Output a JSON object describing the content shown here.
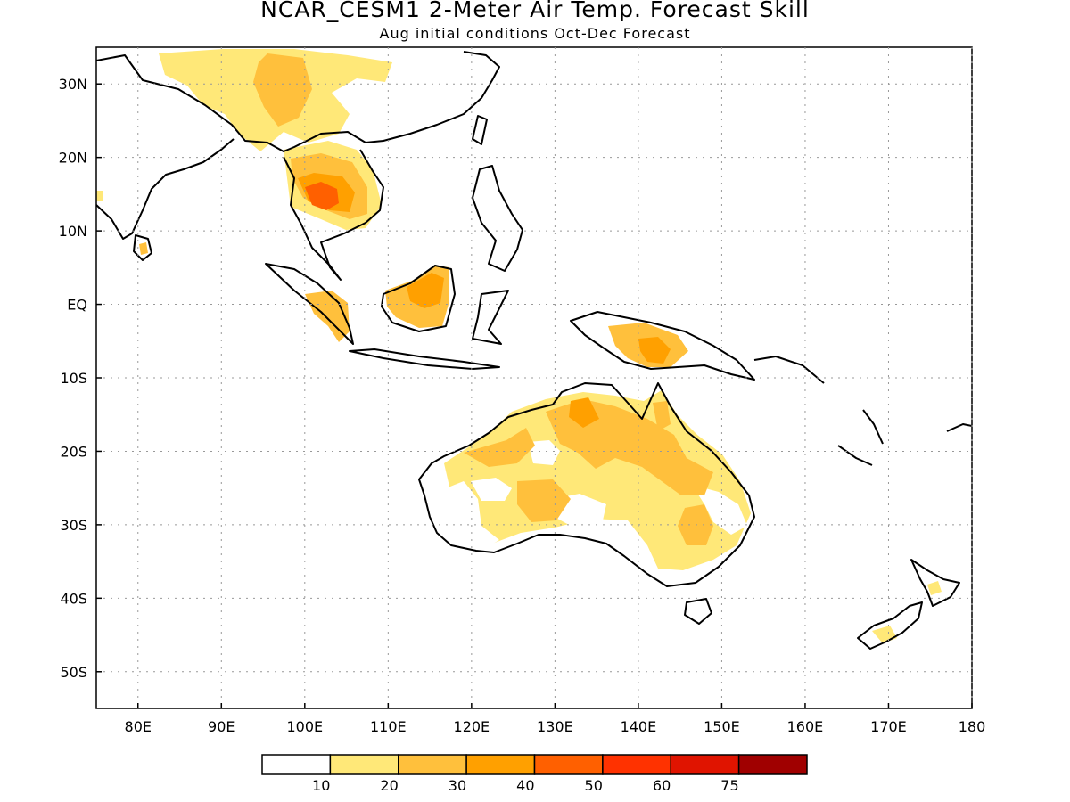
{
  "header": {
    "title": "NCAR_CESM1 2-Meter Air Temp. Forecast Skill",
    "subtitle": "Aug initial conditions  Oct-Dec Forecast"
  },
  "map": {
    "lon_range": [
      75,
      180
    ],
    "lat_range": [
      -55,
      35
    ],
    "lat_ticks": [
      {
        "lat": 30,
        "label": "30N"
      },
      {
        "lat": 20,
        "label": "20N"
      },
      {
        "lat": 10,
        "label": "10N"
      },
      {
        "lat": 0,
        "label": "EQ"
      },
      {
        "lat": -10,
        "label": "10S"
      },
      {
        "lat": -20,
        "label": "20S"
      },
      {
        "lat": -30,
        "label": "30S"
      },
      {
        "lat": -40,
        "label": "40S"
      },
      {
        "lat": -50,
        "label": "50S"
      }
    ],
    "lon_ticks": [
      {
        "lon": 80,
        "label": "80E"
      },
      {
        "lon": 90,
        "label": "90E"
      },
      {
        "lon": 100,
        "label": "100E"
      },
      {
        "lon": 110,
        "label": "110E"
      },
      {
        "lon": 120,
        "label": "120E"
      },
      {
        "lon": 130,
        "label": "130E"
      },
      {
        "lon": 140,
        "label": "140E"
      },
      {
        "lon": 150,
        "label": "150E"
      },
      {
        "lon": 160,
        "label": "160E"
      },
      {
        "lon": 170,
        "label": "170E"
      },
      {
        "lon": 180,
        "label": "180"
      }
    ],
    "grid": "dotted"
  },
  "legend": {
    "colors": [
      "#ffffff",
      "#ffe878",
      "#ffc03c",
      "#ffa000",
      "#ff6000",
      "#ff3200",
      "#e01400",
      "#a00000"
    ],
    "labels": [
      "10",
      "20",
      "30",
      "40",
      "50",
      "60",
      "75"
    ]
  }
}
